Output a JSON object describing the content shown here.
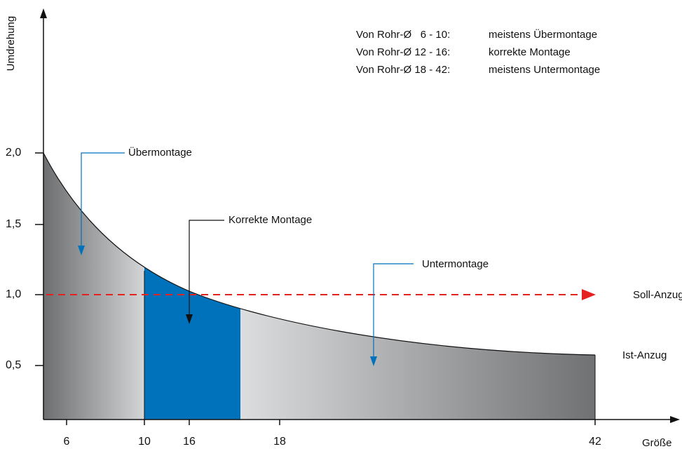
{
  "axes": {
    "y_label": "Umdrehung",
    "x_label": "Größe",
    "y_ticks": [
      "2,0",
      "1,5",
      "1,0",
      "0,5"
    ],
    "x_ticks": [
      "6",
      "10",
      "16",
      "18",
      "42"
    ]
  },
  "legend": [
    {
      "range": "Von Rohr-Ø   6 - 10:",
      "text": "meistens Übermontage"
    },
    {
      "range": "Von Rohr-Ø 12 - 16:",
      "text": "korrekte Montage"
    },
    {
      "range": "Von Rohr-Ø 18 - 42:",
      "text": "meistens Untermontage"
    }
  ],
  "annotations": {
    "over": "Übermontage",
    "correct": "Korrekte Montage",
    "under": "Untermontage"
  },
  "lines": {
    "target": "Soll-Anzug",
    "actual": "Ist-Anzug"
  }
}
